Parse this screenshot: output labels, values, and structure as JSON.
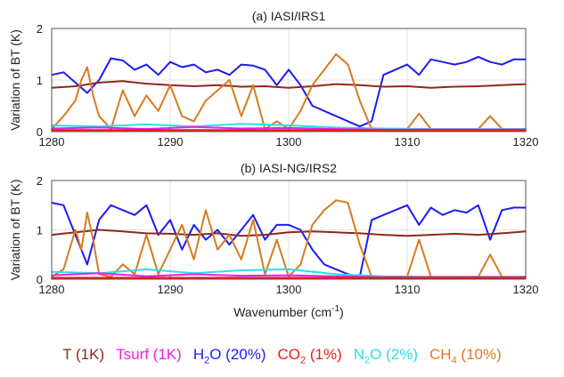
{
  "chart_data": [
    {
      "type": "line",
      "title": "(a) IASI/IRS1",
      "xlabel": "",
      "ylabel": "Variation of BT (K)",
      "xlim": [
        1280,
        1320
      ],
      "ylim": [
        0,
        2
      ],
      "xticks": [
        "1280",
        "1290",
        "1300",
        "1310",
        "1320"
      ],
      "yticks": [
        "0",
        "1",
        "2"
      ],
      "grid": true,
      "series": [
        {
          "name": "H2O (20%)",
          "color": "#1c1cf0",
          "x": [
            1280,
            1281,
            1282,
            1283,
            1284,
            1285,
            1286,
            1287,
            1288,
            1289,
            1290,
            1291,
            1292,
            1293,
            1294,
            1295,
            1296,
            1297,
            1298,
            1299,
            1300,
            1301,
            1302,
            1303,
            1304,
            1305,
            1306,
            1307,
            1308,
            1309,
            1310,
            1311,
            1312,
            1313,
            1314,
            1315,
            1316,
            1317,
            1318,
            1319,
            1320
          ],
          "values": [
            1.1,
            1.15,
            0.95,
            0.75,
            1.0,
            1.42,
            1.38,
            1.2,
            1.3,
            1.1,
            1.35,
            1.25,
            1.3,
            1.15,
            1.2,
            1.1,
            1.3,
            1.28,
            1.2,
            0.9,
            1.2,
            0.9,
            0.5,
            0.4,
            0.3,
            0.2,
            0.1,
            0.2,
            1.1,
            1.2,
            1.3,
            1.1,
            1.4,
            1.35,
            1.3,
            1.35,
            1.45,
            1.35,
            1.3,
            1.4,
            1.4
          ]
        },
        {
          "name": "T (1K)",
          "color": "#8b2a1a",
          "x": [
            1280,
            1282,
            1284,
            1286,
            1288,
            1290,
            1292,
            1294,
            1296,
            1298,
            1300,
            1302,
            1304,
            1306,
            1308,
            1310,
            1312,
            1314,
            1316,
            1318,
            1320
          ],
          "values": [
            0.85,
            0.88,
            0.95,
            0.98,
            0.93,
            0.9,
            0.88,
            0.9,
            0.87,
            0.88,
            0.85,
            0.88,
            0.92,
            0.9,
            0.87,
            0.88,
            0.85,
            0.87,
            0.88,
            0.9,
            0.92
          ]
        },
        {
          "name": "CH4 (10%)",
          "color": "#d97a1f",
          "x": [
            1280,
            1281,
            1282,
            1282.5,
            1283,
            1283.5,
            1284,
            1285,
            1286,
            1287,
            1288,
            1289,
            1290,
            1291,
            1292,
            1293,
            1294,
            1295,
            1296,
            1297,
            1298,
            1299,
            1300,
            1301,
            1302,
            1303,
            1304,
            1305,
            1306,
            1307,
            1308,
            1309,
            1310,
            1311,
            1312,
            1313,
            1314,
            1315,
            1316,
            1317,
            1318,
            1319,
            1320
          ],
          "values": [
            0.05,
            0.3,
            0.6,
            1.0,
            1.25,
            0.7,
            0.3,
            0.05,
            0.8,
            0.3,
            0.7,
            0.4,
            0.9,
            0.3,
            0.2,
            0.6,
            0.8,
            1.0,
            0.3,
            0.9,
            0.05,
            0.2,
            0.05,
            0.4,
            0.9,
            1.2,
            1.5,
            1.3,
            0.6,
            0.05,
            0.05,
            0.05,
            0.05,
            0.35,
            0.05,
            0.05,
            0.05,
            0.05,
            0.05,
            0.3,
            0.05,
            0.05,
            0.05
          ]
        },
        {
          "name": "N2O (2%)",
          "color": "#28e0e8",
          "x": [
            1280,
            1284,
            1288,
            1292,
            1296,
            1300,
            1304,
            1308,
            1312,
            1316,
            1320
          ],
          "values": [
            0.12,
            0.1,
            0.14,
            0.1,
            0.15,
            0.12,
            0.08,
            0.06,
            0.05,
            0.05,
            0.05
          ]
        },
        {
          "name": "Tsurf (1K)",
          "color": "#ee1ee8",
          "x": [
            1280,
            1284,
            1288,
            1292,
            1296,
            1300,
            1304,
            1308,
            1312,
            1316,
            1320
          ],
          "values": [
            0.06,
            0.08,
            0.05,
            0.09,
            0.06,
            0.07,
            0.05,
            0.04,
            0.04,
            0.04,
            0.04
          ]
        },
        {
          "name": "CO2 (1%)",
          "color": "#ee1a1a",
          "x": [
            1280,
            1320
          ],
          "values": [
            0.02,
            0.02
          ]
        }
      ]
    },
    {
      "type": "line",
      "title": "(b) IASI-NG/IRS2",
      "xlabel": "Wavenumber (cm-1)",
      "ylabel": "Variation of BT (K)",
      "xlim": [
        1280,
        1320
      ],
      "ylim": [
        0,
        2
      ],
      "xticks": [
        "1280",
        "1290",
        "1300",
        "1310",
        "1320"
      ],
      "yticks": [
        "0",
        "1",
        "2"
      ],
      "grid": true,
      "series": [
        {
          "name": "H2O (20%)",
          "color": "#1c1cf0",
          "x": [
            1280,
            1281,
            1282,
            1283,
            1284,
            1285,
            1286,
            1287,
            1288,
            1289,
            1290,
            1291,
            1292,
            1293,
            1294,
            1295,
            1296,
            1297,
            1298,
            1299,
            1300,
            1301,
            1302,
            1303,
            1304,
            1305,
            1306,
            1307,
            1308,
            1309,
            1310,
            1311,
            1312,
            1313,
            1314,
            1315,
            1316,
            1317,
            1318,
            1319,
            1320
          ],
          "values": [
            1.55,
            1.5,
            0.9,
            0.3,
            1.2,
            1.5,
            1.4,
            1.3,
            1.5,
            0.9,
            1.2,
            0.6,
            1.1,
            0.8,
            1.0,
            0.7,
            1.0,
            1.3,
            0.8,
            1.1,
            1.1,
            1.0,
            0.6,
            0.3,
            0.2,
            0.1,
            0.05,
            1.2,
            1.3,
            1.4,
            1.5,
            1.1,
            1.45,
            1.3,
            1.4,
            1.35,
            1.5,
            0.8,
            1.4,
            1.45,
            1.45
          ]
        },
        {
          "name": "T (1K)",
          "color": "#8b2a1a",
          "x": [
            1280,
            1282,
            1284,
            1286,
            1288,
            1290,
            1292,
            1294,
            1296,
            1298,
            1300,
            1302,
            1304,
            1306,
            1308,
            1310,
            1312,
            1314,
            1316,
            1318,
            1320
          ],
          "values": [
            0.9,
            0.95,
            1.0,
            0.97,
            0.93,
            0.92,
            0.9,
            0.93,
            0.88,
            0.9,
            0.95,
            0.97,
            0.95,
            0.93,
            0.9,
            0.88,
            0.9,
            0.92,
            0.9,
            0.93,
            0.97
          ]
        },
        {
          "name": "CH4 (10%)",
          "color": "#d97a1f",
          "x": [
            1280,
            1281,
            1282,
            1282.5,
            1283,
            1283.5,
            1284,
            1285,
            1286,
            1287,
            1288,
            1289,
            1290,
            1291,
            1292,
            1293,
            1294,
            1295,
            1296,
            1297,
            1298,
            1299,
            1300,
            1301,
            1302,
            1303,
            1304,
            1305,
            1306,
            1307,
            1308,
            1309,
            1310,
            1311,
            1312,
            1313,
            1314,
            1315,
            1316,
            1317,
            1318,
            1319,
            1320
          ],
          "values": [
            0.05,
            0.2,
            1.0,
            0.6,
            1.35,
            0.8,
            0.1,
            0.05,
            0.3,
            0.1,
            0.9,
            0.1,
            0.6,
            1.1,
            0.4,
            1.4,
            0.6,
            0.9,
            0.4,
            1.2,
            0.1,
            0.8,
            0.05,
            0.3,
            1.1,
            1.4,
            1.6,
            1.55,
            0.7,
            0.05,
            0.05,
            0.05,
            0.05,
            0.8,
            0.05,
            0.05,
            0.05,
            0.05,
            0.05,
            0.5,
            0.05,
            0.05,
            0.05
          ]
        },
        {
          "name": "N2O (2%)",
          "color": "#28e0e8",
          "x": [
            1280,
            1284,
            1288,
            1292,
            1296,
            1300,
            1304,
            1308,
            1312,
            1316,
            1320
          ],
          "values": [
            0.15,
            0.12,
            0.2,
            0.12,
            0.18,
            0.2,
            0.1,
            0.06,
            0.05,
            0.05,
            0.05
          ]
        },
        {
          "name": "Tsurf (1K)",
          "color": "#ee1ee8",
          "x": [
            1280,
            1284,
            1288,
            1292,
            1296,
            1300,
            1304,
            1308,
            1312,
            1316,
            1320
          ],
          "values": [
            0.08,
            0.12,
            0.06,
            0.1,
            0.07,
            0.08,
            0.06,
            0.04,
            0.04,
            0.04,
            0.04
          ]
        },
        {
          "name": "CO2 (1%)",
          "color": "#ee1a1a",
          "x": [
            1280,
            1320
          ],
          "values": [
            0.02,
            0.02
          ]
        }
      ]
    }
  ],
  "legend": [
    {
      "main": "T (1K)",
      "sub": "",
      "tail": "",
      "color": "#8b2a1a"
    },
    {
      "main": "Tsurf (1K)",
      "sub": "",
      "tail": "",
      "color": "#ee1ee8"
    },
    {
      "main": "H",
      "sub": "2",
      "tail": "O (20%)",
      "color": "#1c1cf0"
    },
    {
      "main": "CO",
      "sub": "2",
      "tail": " (1%)",
      "color": "#ee1a1a"
    },
    {
      "main": "N",
      "sub": "2",
      "tail": "O (2%)",
      "color": "#28e0e8"
    },
    {
      "main": "CH",
      "sub": "4",
      "tail": " (10%)",
      "color": "#d97a1f"
    }
  ]
}
